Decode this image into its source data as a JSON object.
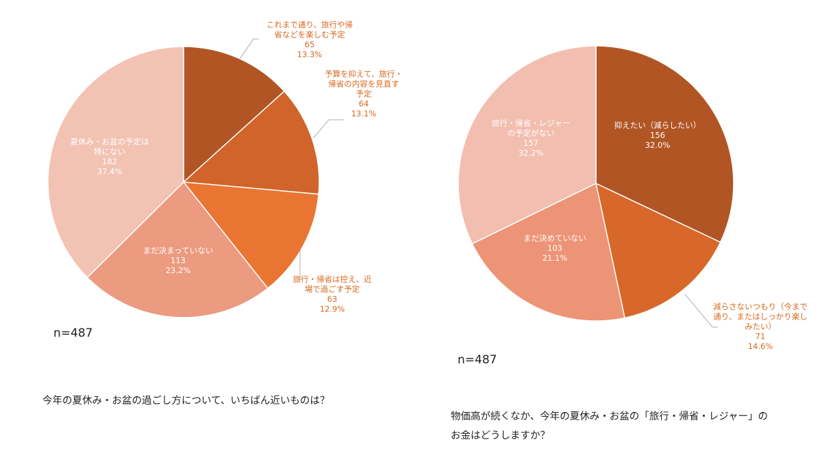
{
  "chart_data": [
    {
      "type": "pie",
      "title": "今年の夏休み・お盆の過ごし方について、いちばん近いものは？",
      "n_label": "n=487",
      "slices": [
        {
          "lines": [
            "これまで通り、旅行や帰",
            "省などを楽しむ予定"
          ],
          "count": "65",
          "percent": "13.3%",
          "value": 13.3,
          "color": "#b15525",
          "label_style": "outside"
        },
        {
          "lines": [
            "予算を抑えて、旅行・",
            "帰省の内容を見直す",
            "予定"
          ],
          "count": "64",
          "percent": "13.1%",
          "value": 13.1,
          "color": "#d0642a",
          "label_style": "outside"
        },
        {
          "lines": [
            "旅行・帰省は控え、近",
            "場で過ごす予定"
          ],
          "count": "63",
          "percent": "12.9%",
          "value": 12.9,
          "color": "#ea7533",
          "label_style": "outside"
        },
        {
          "lines": [
            "まだ決まっていない"
          ],
          "count": "113",
          "percent": "23.2%",
          "value": 23.2,
          "color": "#ec9a80",
          "label_style": "inside"
        },
        {
          "lines": [
            "夏休み・お盆の予定は",
            "特にない"
          ],
          "count": "182",
          "percent": "37.4%",
          "value": 37.4,
          "color": "#f2c2b3",
          "label_style": "inside"
        }
      ]
    },
    {
      "type": "pie",
      "title": "物価高が続くなか、今年の夏休み・お盆の「旅行・帰省・レジャー」の\nお金はどうしますか？",
      "n_label": "n=487",
      "slices": [
        {
          "lines": [
            "抑えたい（減らしたい）"
          ],
          "count": "156",
          "percent": "32.0%",
          "value": 32.0,
          "color": "#b15525",
          "label_style": "inside"
        },
        {
          "lines": [
            "減らさないつもり（今まで",
            "通り、またはしっかり楽し",
            "みたい）"
          ],
          "count": "71",
          "percent": "14.6%",
          "value": 14.6,
          "color": "#d8682a",
          "label_style": "outside"
        },
        {
          "lines": [
            "まだ決めていない"
          ],
          "count": "103",
          "percent": "21.1%",
          "value": 21.1,
          "color": "#ec9475",
          "label_style": "inside"
        },
        {
          "lines": [
            "旅行・帰省・レジャー",
            "の予定がない"
          ],
          "count": "157",
          "percent": "32.2%",
          "value": 32.2,
          "color": "#f2beb0",
          "label_style": "inside"
        }
      ]
    }
  ]
}
